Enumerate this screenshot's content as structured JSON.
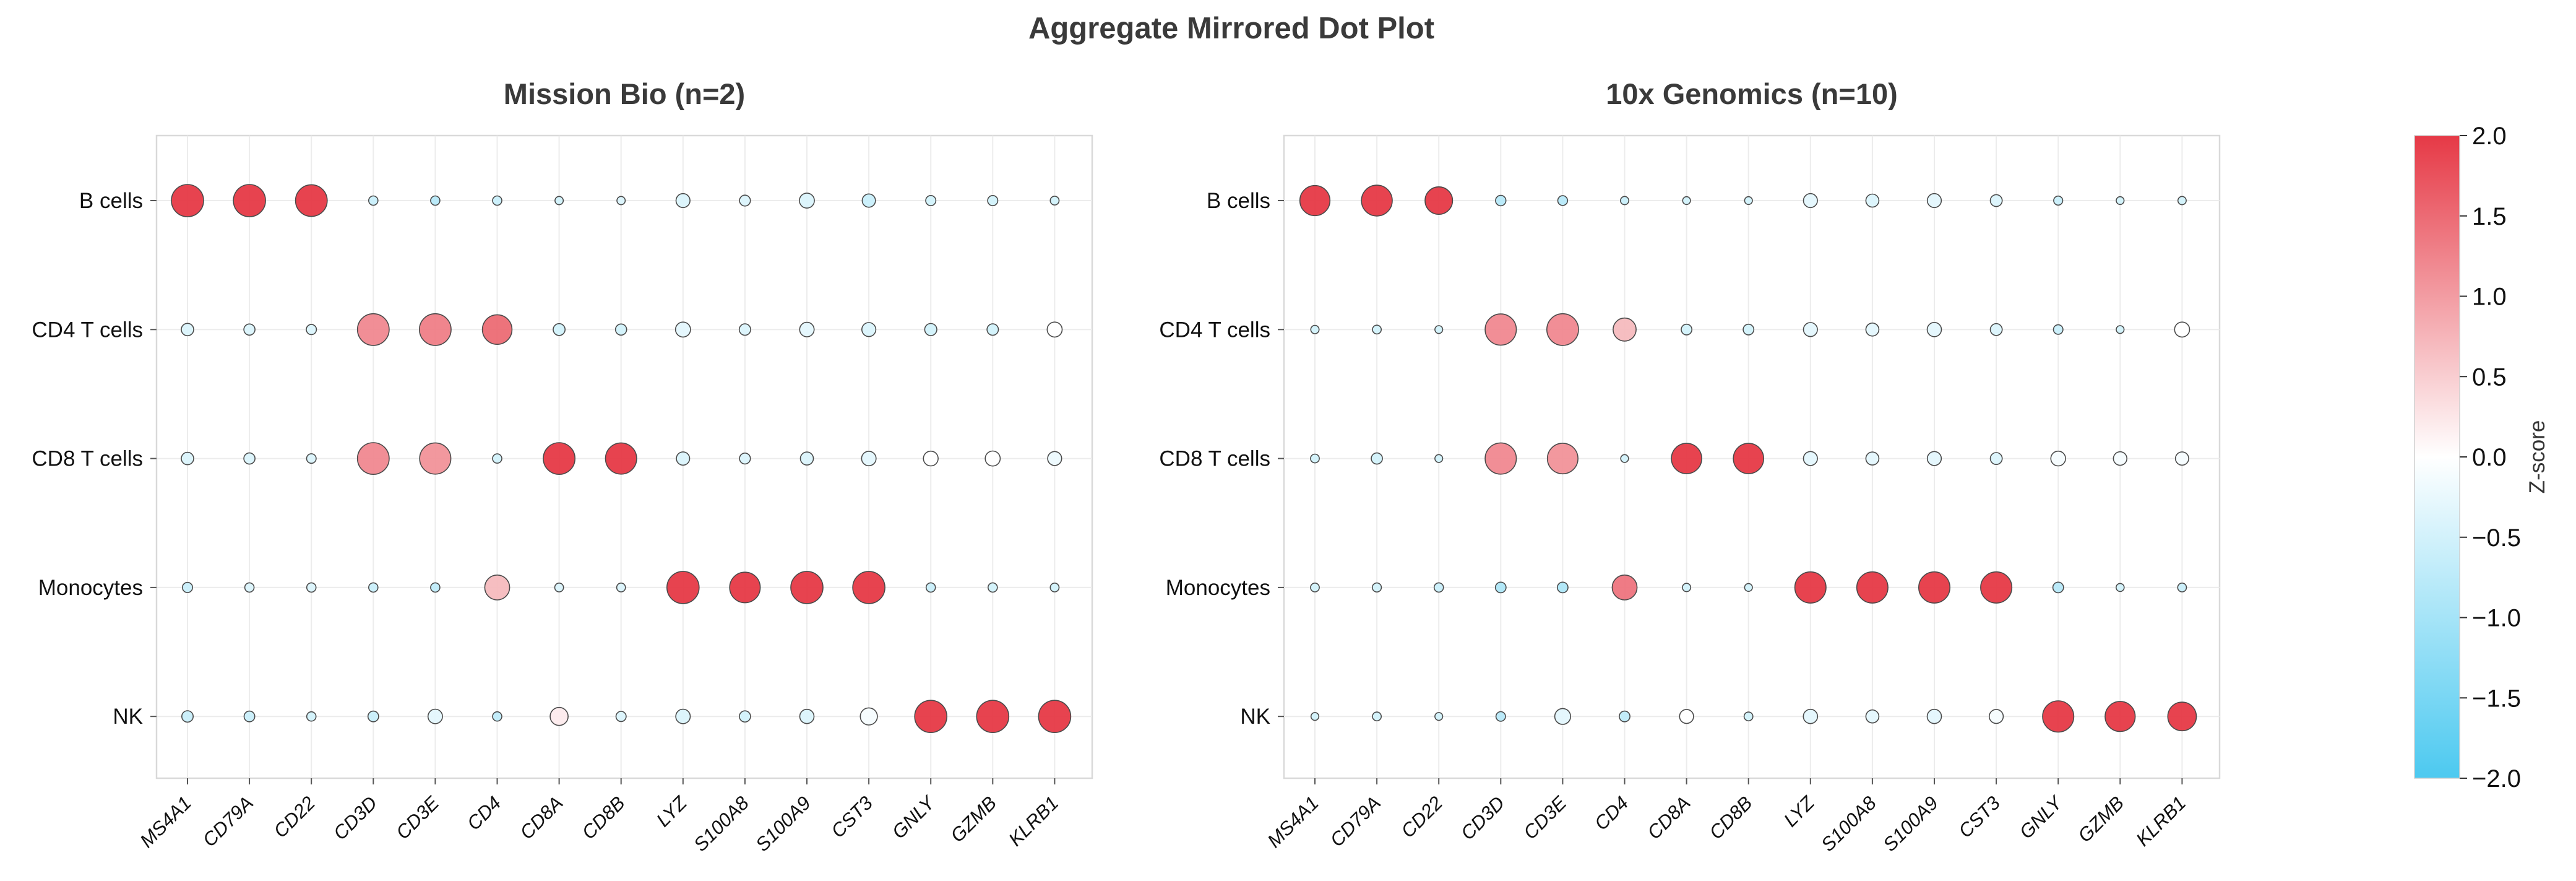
{
  "figure_title": "Aggregate Mirrored Dot Plot",
  "colorbar": {
    "label": "Z-score",
    "range": [
      -2.0,
      2.0
    ],
    "ticks": [
      "2.0",
      "1.5",
      "1.0",
      "0.5",
      "0.0",
      "−0.5",
      "−1.0",
      "−1.5",
      "−2.0"
    ],
    "tick_values": [
      2.0,
      1.5,
      1.0,
      0.5,
      0.0,
      -0.5,
      -1.0,
      -1.5,
      -2.0
    ],
    "colors": {
      "low": "#4cc9f0",
      "mid": "#ffffff",
      "high": "#e63946"
    }
  },
  "chart_data": [
    {
      "type": "scatter",
      "title": "Mission Bio (n=2)",
      "genes": [
        "MS4A1",
        "CD79A",
        "CD22",
        "CD3D",
        "CD3E",
        "CD4",
        "CD8A",
        "CD8B",
        "LYZ",
        "S100A8",
        "S100A9",
        "CST3",
        "GNLY",
        "GZMB",
        "KLRB1"
      ],
      "cell_types": [
        "B cells",
        "CD4 T cells",
        "CD8 T cells",
        "Monocytes",
        "NK"
      ],
      "size_values": [
        [
          1.0,
          1.0,
          0.98,
          0.12,
          0.12,
          0.12,
          0.08,
          0.08,
          0.3,
          0.18,
          0.34,
          0.27,
          0.15,
          0.15,
          0.1
        ],
        [
          0.24,
          0.19,
          0.15,
          0.98,
          0.98,
          0.9,
          0.22,
          0.19,
          0.34,
          0.2,
          0.32,
          0.3,
          0.23,
          0.2,
          0.34
        ],
        [
          0.24,
          0.19,
          0.13,
          0.98,
          0.96,
          0.12,
          0.98,
          0.96,
          0.27,
          0.18,
          0.26,
          0.32,
          0.33,
          0.34,
          0.3
        ],
        [
          0.15,
          0.12,
          0.12,
          0.12,
          0.12,
          0.72,
          0.1,
          0.1,
          1.0,
          0.94,
          1.0,
          1.0,
          0.12,
          0.12,
          0.1
        ],
        [
          0.2,
          0.17,
          0.12,
          0.17,
          0.32,
          0.12,
          0.45,
          0.15,
          0.32,
          0.19,
          0.31,
          0.42,
          1.0,
          1.0,
          1.0
        ]
      ],
      "z_values": [
        [
          2.0,
          2.0,
          2.0,
          -0.6,
          -0.8,
          -0.6,
          -0.5,
          -0.4,
          -0.4,
          -0.4,
          -0.4,
          -0.6,
          -0.5,
          -0.5,
          -0.5
        ],
        [
          -0.4,
          -0.4,
          -0.4,
          1.2,
          1.3,
          1.5,
          -0.5,
          -0.5,
          -0.3,
          -0.4,
          -0.3,
          -0.4,
          -0.5,
          -0.5,
          0.0
        ],
        [
          -0.4,
          -0.4,
          -0.4,
          1.2,
          1.1,
          -0.5,
          2.0,
          2.0,
          -0.4,
          -0.4,
          -0.4,
          -0.3,
          0.0,
          0.0,
          -0.2
        ],
        [
          -0.6,
          -0.4,
          -0.4,
          -0.6,
          -0.7,
          0.7,
          -0.4,
          -0.4,
          2.0,
          2.0,
          2.0,
          2.0,
          -0.6,
          -0.5,
          -0.5
        ],
        [
          -0.6,
          -0.6,
          -0.5,
          -0.6,
          -0.3,
          -0.7,
          0.2,
          -0.4,
          -0.4,
          -0.5,
          -0.4,
          -0.1,
          2.0,
          2.0,
          2.0
        ]
      ]
    },
    {
      "type": "scatter",
      "title": "10x Genomics (n=10)",
      "genes": [
        "MS4A1",
        "CD79A",
        "CD22",
        "CD3D",
        "CD3E",
        "CD4",
        "CD8A",
        "CD8B",
        "LYZ",
        "S100A8",
        "S100A9",
        "CST3",
        "GNLY",
        "GZMB",
        "KLRB1"
      ],
      "cell_types": [
        "B cells",
        "CD4 T cells",
        "CD8 T cells",
        "Monocytes",
        "NK"
      ],
      "size_values": [
        [
          0.92,
          0.95,
          0.82,
          0.16,
          0.14,
          0.08,
          0.06,
          0.06,
          0.3,
          0.26,
          0.3,
          0.22,
          0.11,
          0.06,
          0.08
        ],
        [
          0.08,
          0.1,
          0.06,
          0.96,
          0.98,
          0.65,
          0.17,
          0.17,
          0.3,
          0.26,
          0.31,
          0.22,
          0.13,
          0.06,
          0.34
        ],
        [
          0.1,
          0.19,
          0.06,
          0.96,
          0.94,
          0.06,
          0.93,
          0.93,
          0.3,
          0.26,
          0.3,
          0.22,
          0.33,
          0.28,
          0.27
        ],
        [
          0.1,
          0.11,
          0.12,
          0.17,
          0.17,
          0.72,
          0.08,
          0.06,
          0.96,
          0.96,
          0.96,
          0.96,
          0.17,
          0.07,
          0.1
        ],
        [
          0.06,
          0.1,
          0.06,
          0.13,
          0.37,
          0.17,
          0.3,
          0.1,
          0.31,
          0.26,
          0.31,
          0.3,
          0.96,
          0.92,
          0.86
        ]
      ],
      "z_values": [
        [
          2.0,
          2.0,
          2.0,
          -0.8,
          -0.8,
          -0.6,
          -0.5,
          -0.5,
          -0.3,
          -0.4,
          -0.3,
          -0.4,
          -0.6,
          -0.5,
          -0.5
        ],
        [
          -0.5,
          -0.5,
          -0.5,
          1.2,
          1.2,
          0.7,
          -0.5,
          -0.5,
          -0.3,
          -0.3,
          -0.3,
          -0.4,
          -0.6,
          -0.5,
          0.0
        ],
        [
          -0.5,
          -0.5,
          -0.5,
          1.2,
          1.1,
          -0.5,
          2.0,
          2.0,
          -0.3,
          -0.3,
          -0.3,
          -0.4,
          -0.1,
          -0.1,
          -0.1
        ],
        [
          -0.5,
          -0.5,
          -0.6,
          -0.9,
          -0.9,
          1.4,
          -0.5,
          -0.5,
          2.0,
          2.0,
          2.0,
          2.0,
          -0.8,
          -0.5,
          -0.6
        ],
        [
          -0.5,
          -0.5,
          -0.5,
          -0.8,
          -0.3,
          -0.7,
          0.0,
          -0.5,
          -0.3,
          -0.3,
          -0.3,
          -0.1,
          2.0,
          2.0,
          2.0
        ]
      ]
    }
  ]
}
